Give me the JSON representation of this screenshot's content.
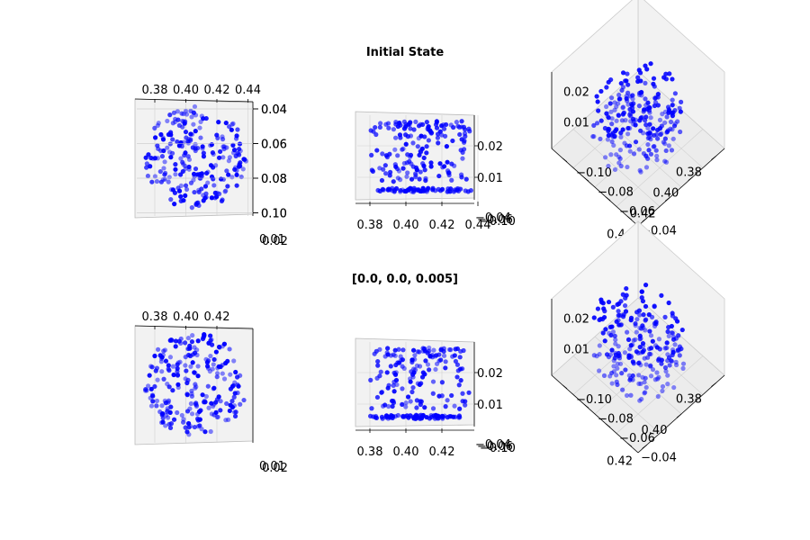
{
  "figure": {
    "row_titles": [
      "Initial State",
      "[0.0, 0.0, 0.005]"
    ]
  },
  "colors": {
    "points": "#0000ff",
    "pane": "#f2f2f2",
    "grid": "#d0d0d0",
    "axis": "#000000"
  },
  "chart_data": [
    {
      "type": "scatter",
      "projection": "3d",
      "view": "top",
      "title": "Initial State",
      "x_ticks": [
        "0.38",
        "0.40",
        "0.42",
        "0.44"
      ],
      "y_ticks": [
        "0.04",
        "0.06",
        "0.08",
        "0.10"
      ],
      "z_ticks": [
        "0.01",
        "0.02"
      ],
      "x_range": [
        0.37,
        0.445
      ],
      "y_range": [
        -0.105,
        -0.035
      ],
      "z_range": [
        0.005,
        0.027
      ],
      "shape": "sphere-cap",
      "center": [
        0.405,
        -0.07
      ],
      "radius": 0.03,
      "z_min": 0.005,
      "z_max": 0.025,
      "n_points": 230,
      "seed": 11
    },
    {
      "type": "scatter",
      "projection": "3d",
      "view": "side",
      "x_ticks": [
        "0.38",
        "0.40",
        "0.42",
        "0.44"
      ],
      "z_ticks": [
        "0.01",
        "0.02"
      ],
      "y_ticks": [
        "−0.04",
        "−0.06",
        "−0.10"
      ],
      "x_range": [
        0.37,
        0.445
      ],
      "z_range": [
        0.005,
        0.027
      ],
      "shape": "sphere-cap",
      "n_points": 230,
      "seed": 11
    },
    {
      "type": "scatter",
      "projection": "3d",
      "view": "perspective",
      "x_ticks": [
        "0.38",
        "0.40",
        "0.42",
        "0.44"
      ],
      "y_ticks": [
        "−0.04",
        "−0.06",
        "−0.08",
        "−0.10"
      ],
      "z_ticks": [
        "0.01",
        "0.02"
      ],
      "shape": "sphere-cap",
      "n_points": 230,
      "seed": 11
    },
    {
      "type": "scatter",
      "projection": "3d",
      "view": "top",
      "title": "[0.0, 0.0, 0.005]",
      "x_ticks": [
        "0.38",
        "0.40",
        "0.42"
      ],
      "y_ticks": [
        "0.04",
        "0.06",
        "0.08",
        "0.10"
      ],
      "z_ticks": [
        "0.01",
        "0.02"
      ],
      "x_range": [
        0.37,
        0.435
      ],
      "y_range": [
        -0.105,
        -0.035
      ],
      "z_range": [
        0.005,
        0.027
      ],
      "shape": "sphere-cap",
      "center": [
        0.402,
        -0.07
      ],
      "radius": 0.03,
      "z_min": 0.005,
      "z_max": 0.025,
      "n_points": 230,
      "seed": 23
    },
    {
      "type": "scatter",
      "projection": "3d",
      "view": "side",
      "x_ticks": [
        "0.38",
        "0.40",
        "0.42"
      ],
      "z_ticks": [
        "0.01",
        "0.02"
      ],
      "y_ticks": [
        "−0.04",
        "−0.06",
        "−0.10"
      ],
      "x_range": [
        0.37,
        0.435
      ],
      "z_range": [
        0.005,
        0.027
      ],
      "shape": "sphere-cap",
      "n_points": 230,
      "seed": 23
    },
    {
      "type": "scatter",
      "projection": "3d",
      "view": "perspective",
      "x_ticks": [
        "0.38",
        "0.40",
        "0.42"
      ],
      "y_ticks": [
        "−0.04",
        "−0.06",
        "−0.08",
        "−0.10"
      ],
      "z_ticks": [
        "0.01",
        "0.02"
      ],
      "shape": "sphere-cap",
      "n_points": 230,
      "seed": 23
    }
  ]
}
